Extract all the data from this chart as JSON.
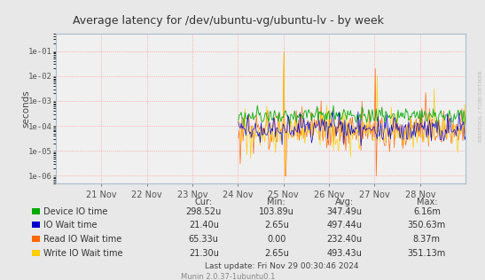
{
  "title": "Average latency for /dev/ubuntu-vg/ubuntu-lv - by week",
  "ylabel": "seconds",
  "background_color": "#e8e8e8",
  "plot_bg_color": "#f0f0f0",
  "grid_color_major": "#ff9999",
  "grid_color_minor": "#ffdddd",
  "ylim_min": 5e-07,
  "ylim_max": 0.5,
  "yticks": [
    1e-06,
    1e-05,
    0.0001,
    0.001,
    0.01,
    0.1
  ],
  "ytick_labels": [
    "1e-06",
    "1e-05",
    "1e-04",
    "1e-03",
    "1e-02",
    "1e-01"
  ],
  "x_labels": [
    "21 Nov",
    "22 Nov",
    "23 Nov",
    "24 Nov",
    "25 Nov",
    "26 Nov",
    "27 Nov",
    "28 Nov"
  ],
  "series": {
    "device_io": {
      "color": "#00aa00",
      "label": "Device IO time",
      "cur": "298.52u",
      "min": "103.89u",
      "avg": "347.49u",
      "max": "6.16m"
    },
    "io_wait": {
      "color": "#0000cc",
      "label": "IO Wait time",
      "cur": "21.40u",
      "min": "2.65u",
      "avg": "497.44u",
      "max": "350.63m"
    },
    "read_io": {
      "color": "#ff6600",
      "label": "Read IO Wait time",
      "cur": "65.33u",
      "min": "0.00",
      "avg": "232.40u",
      "max": "8.37m"
    },
    "write_io": {
      "color": "#ffcc00",
      "label": "Write IO Wait time",
      "cur": "21.30u",
      "min": "2.65u",
      "avg": "493.43u",
      "max": "351.13m"
    }
  },
  "footer": "Last update: Fri Nov 29 00:30:46 2024",
  "munin_version": "Munin 2.0.37-1ubuntu0.1",
  "watermark": "RRDTOOL / TOBI OETIKER"
}
